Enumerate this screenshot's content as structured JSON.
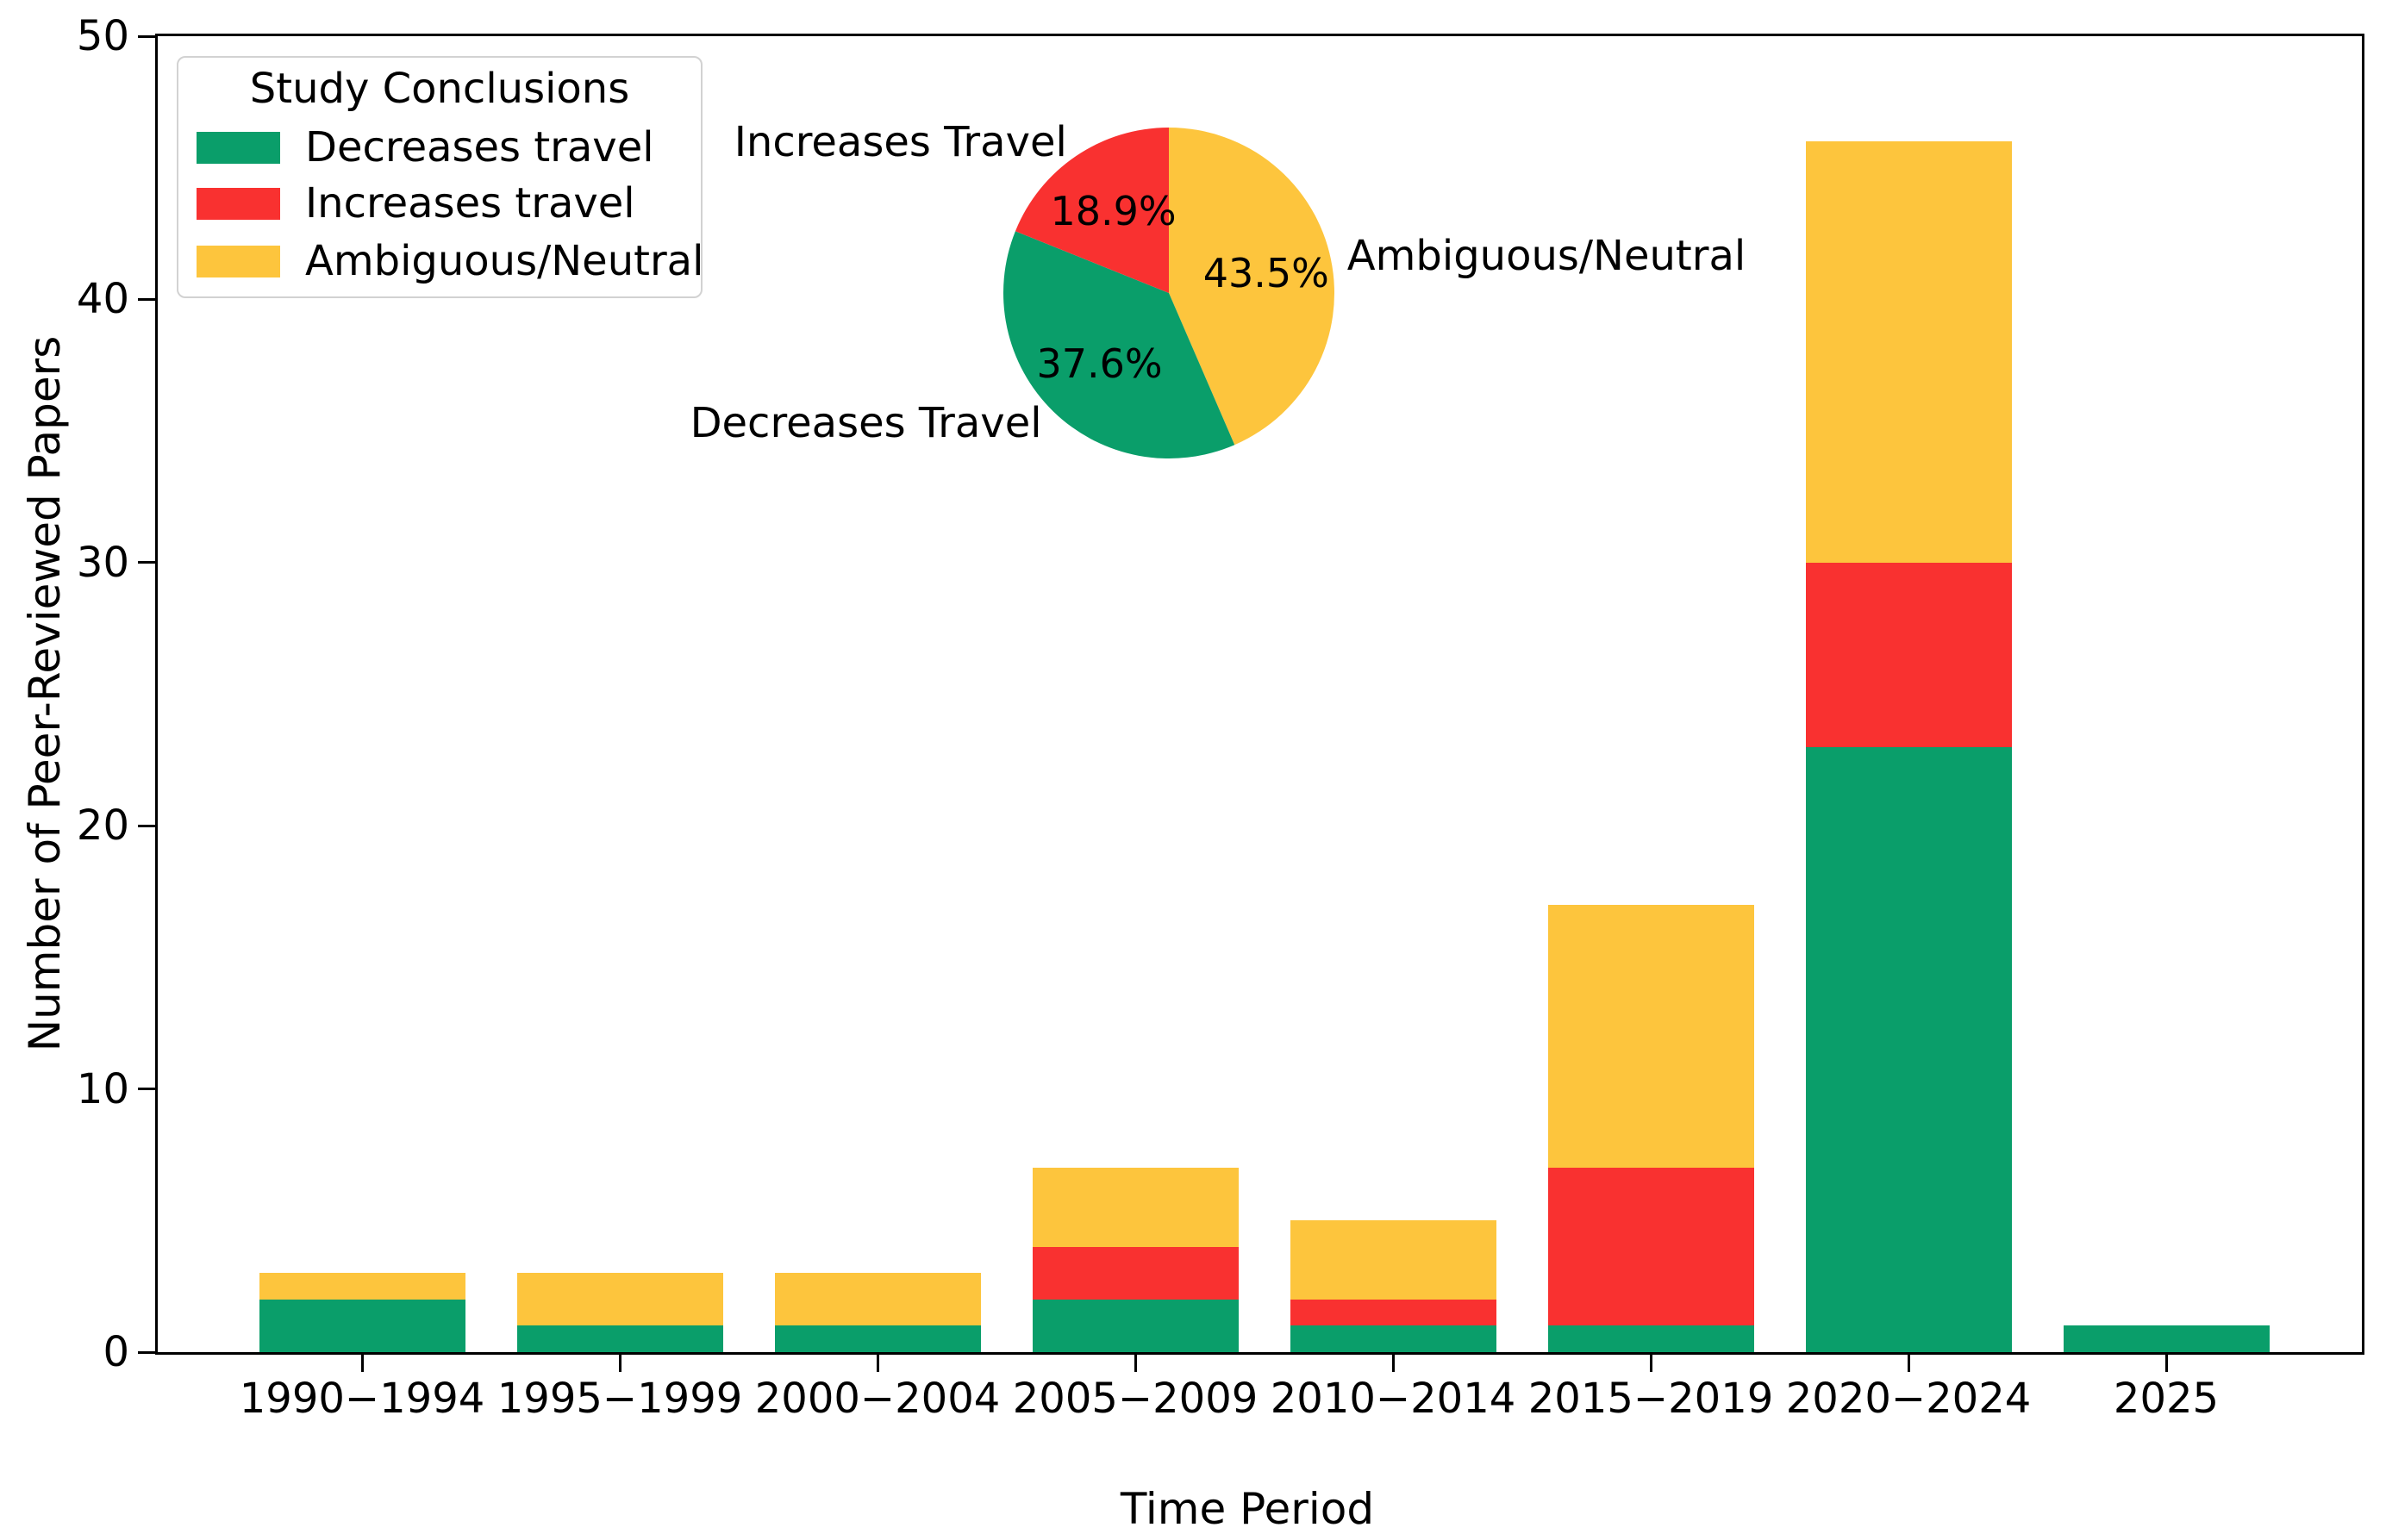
{
  "figure": {
    "background": "#ffffff"
  },
  "colors": {
    "decreases": "#0A9E6A",
    "increases": "#F93130",
    "ambiguous": "#FDC53D",
    "axis": "#000000",
    "text": "#000000",
    "legend_border": "#d2d2d2"
  },
  "legend": {
    "title": "Study Conclusions",
    "items": [
      {
        "label": "Decreases travel",
        "color_key": "decreases"
      },
      {
        "label": "Increases travel",
        "color_key": "increases"
      },
      {
        "label": "Ambiguous/Neutral",
        "color_key": "ambiguous"
      }
    ]
  },
  "chart_data": [
    {
      "type": "bar",
      "stacked": true,
      "title": "",
      "xlabel": "Time Period",
      "ylabel": "Number of Peer-Reviewed Papers",
      "categories": [
        "1990−1994",
        "1995−1999",
        "2000−2004",
        "2005−2009",
        "2010−2014",
        "2015−2019",
        "2020−2024",
        "2025"
      ],
      "series": [
        {
          "name": "Decreases travel",
          "color_key": "decreases",
          "values": [
            2,
            1,
            1,
            2,
            1,
            1,
            23,
            1
          ]
        },
        {
          "name": "Increases travel",
          "color_key": "increases",
          "values": [
            0,
            0,
            0,
            2,
            1,
            6,
            7,
            0
          ]
        },
        {
          "name": "Ambiguous/Neutral",
          "color_key": "ambiguous",
          "values": [
            1,
            2,
            2,
            3,
            3,
            10,
            16,
            0
          ]
        }
      ],
      "totals": [
        3,
        3,
        3,
        7,
        5,
        17,
        46,
        1
      ],
      "ylim": [
        0,
        50
      ],
      "yticks": [
        0,
        10,
        20,
        30,
        40,
        50
      ],
      "grid": false,
      "legend_position": "upper left"
    },
    {
      "type": "pie",
      "start_angle_deg": 90,
      "clockwise": true,
      "slices": [
        {
          "label": "Ambiguous/Neutral",
          "value_pct": 43.5,
          "pct_label": "43.5%",
          "color_key": "ambiguous"
        },
        {
          "label": "Decreases Travel",
          "value_pct": 37.6,
          "pct_label": "37.6%",
          "color_key": "decreases"
        },
        {
          "label": "Increases Travel",
          "value_pct": 18.9,
          "pct_label": "18.9%",
          "color_key": "increases"
        }
      ]
    }
  ]
}
